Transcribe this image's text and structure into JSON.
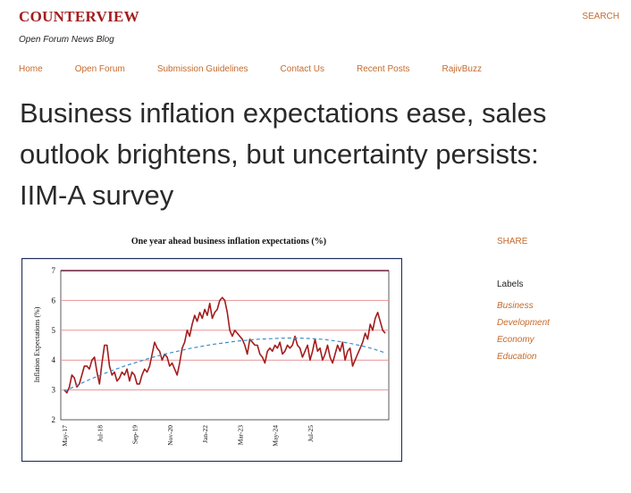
{
  "header": {
    "brand": "COUNTERVIEW",
    "tagline": "Open Forum News Blog",
    "search_label": "SEARCH"
  },
  "nav": {
    "items": [
      "Home",
      "Open Forum",
      "Submission Guidelines",
      "Contact Us",
      "Recent Posts",
      "RajivBuzz"
    ]
  },
  "article": {
    "title": "Business inflation expectations ease, sales outlook brightens, but uncertainty persists: IIM-A survey"
  },
  "sidebar": {
    "share_label": "SHARE",
    "labels_heading": "Labels",
    "labels": [
      "Business",
      "Development",
      "Economy",
      "Education"
    ]
  },
  "colors": {
    "accent": "#c66a2c",
    "brand": "#a31d1d",
    "series": "#a31d1d",
    "trend": "#3a8fc4"
  },
  "chart_data": {
    "type": "line",
    "title": "One year ahead business inflation expectations (%)",
    "xlabel": "",
    "ylabel": "Inflation Expectations (%)",
    "ylim": [
      2,
      7
    ],
    "yticks": [
      2,
      3,
      4,
      5,
      6,
      7
    ],
    "xtick_labels": [
      "May-17",
      "Jul-18",
      "Sep-19",
      "Nov-20",
      "Jan-22",
      "Mar-23",
      "May-24",
      "Jul-25"
    ],
    "xtick_index": [
      0,
      14,
      28,
      42,
      56,
      70,
      84,
      98
    ],
    "grid": true,
    "series": [
      {
        "name": "",
        "style": "solid",
        "values": [
          3.0,
          2.9,
          3.1,
          3.5,
          3.4,
          3.1,
          3.2,
          3.5,
          3.8,
          3.8,
          3.7,
          4.0,
          4.1,
          3.6,
          3.2,
          3.9,
          4.5,
          4.5,
          3.8,
          3.5,
          3.6,
          3.3,
          3.4,
          3.6,
          3.5,
          3.7,
          3.3,
          3.6,
          3.5,
          3.2,
          3.2,
          3.5,
          3.7,
          3.6,
          3.8,
          4.2,
          4.6,
          4.4,
          4.3,
          4.0,
          4.2,
          4.1,
          3.8,
          3.9,
          3.7,
          3.5,
          3.9,
          4.4,
          4.6,
          5.0,
          4.8,
          5.2,
          5.5,
          5.3,
          5.6,
          5.4,
          5.7,
          5.5,
          5.9,
          5.4,
          5.6,
          5.7,
          6.0,
          6.1,
          6.0,
          5.6,
          5.0,
          4.8,
          5.0,
          4.9,
          4.8,
          4.7,
          4.5,
          4.2,
          4.7,
          4.6,
          4.5,
          4.5,
          4.2,
          4.1,
          3.9,
          4.3,
          4.4,
          4.3,
          4.5,
          4.4,
          4.6,
          4.2,
          4.3,
          4.5,
          4.4,
          4.5,
          4.8,
          4.5,
          4.4,
          4.1,
          4.3,
          4.5,
          4.0,
          4.3,
          4.7,
          4.3,
          4.4,
          4.0,
          4.2,
          4.5,
          4.1,
          3.9,
          4.2,
          4.5,
          4.3,
          4.6,
          4.0,
          4.3,
          4.4,
          3.8,
          4.0,
          4.2,
          4.4,
          4.6,
          4.9,
          4.7,
          5.2,
          5.0,
          5.4,
          5.6,
          5.3,
          5.0,
          4.9
        ]
      },
      {
        "name": "",
        "style": "dashed",
        "values": [
          2.95,
          3.06,
          3.17,
          3.27,
          3.37,
          3.46,
          3.55,
          3.64,
          3.72,
          3.8,
          3.87,
          3.94,
          4.01,
          4.08,
          4.14,
          4.2,
          4.25,
          4.3,
          4.35,
          4.4,
          4.44,
          4.48,
          4.52,
          4.55,
          4.58,
          4.61,
          4.64,
          4.66,
          4.68,
          4.7,
          4.71,
          4.72,
          4.73,
          4.74,
          4.74,
          4.74,
          4.73,
          4.72,
          4.71,
          4.69,
          4.66,
          4.63,
          4.59,
          4.55,
          4.5,
          4.45,
          4.39,
          4.32,
          4.24
        ]
      }
    ]
  }
}
